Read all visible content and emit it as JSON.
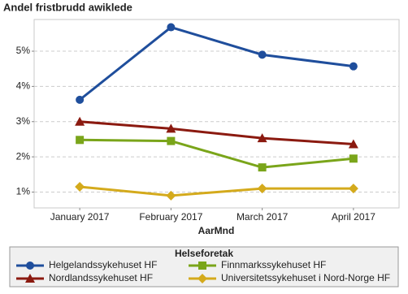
{
  "chart_data": {
    "type": "line",
    "title": "Andel fristbrudd awiklede",
    "x_label": "AarMnd",
    "categories": [
      "January 2017",
      "February 2017",
      "March 2017",
      "April 2017"
    ],
    "series": [
      {
        "name": "Helgelandssykehuset HF",
        "color": "#1f4e9c",
        "marker": "circle",
        "values": [
          3.62,
          5.68,
          4.9,
          4.57
        ]
      },
      {
        "name": "Finnmarkssykehuset HF",
        "color": "#7aa51a",
        "marker": "square",
        "values": [
          2.48,
          2.45,
          1.7,
          1.95
        ]
      },
      {
        "name": "Nordlandssykehuset HF",
        "color": "#8b1a10",
        "marker": "triangle",
        "values": [
          3.0,
          2.8,
          2.53,
          2.36
        ]
      },
      {
        "name": "Universitetssykehuset i Nord-Norge HF",
        "color": "#d4aa1c",
        "marker": "diamond",
        "values": [
          1.15,
          0.9,
          1.1,
          1.1
        ]
      }
    ],
    "ylim": [
      0.55,
      5.9
    ],
    "yticks": [
      {
        "value": 1,
        "label": "1%"
      },
      {
        "value": 2,
        "label": "2%"
      },
      {
        "value": 3,
        "label": "3%"
      },
      {
        "value": 4,
        "label": "4%"
      },
      {
        "value": 5,
        "label": "5%"
      }
    ],
    "grid": true,
    "legend_title": "Helseforetak",
    "legend_position": "bottom"
  }
}
